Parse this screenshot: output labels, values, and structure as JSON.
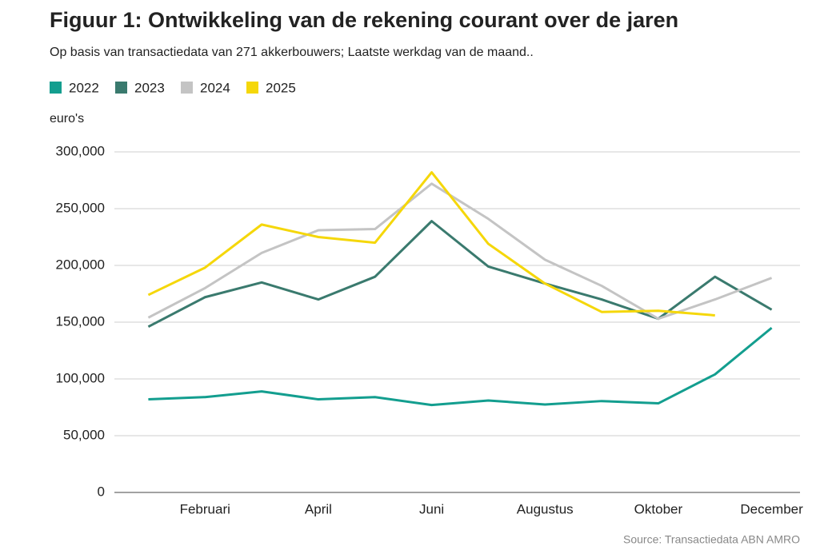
{
  "chart_data": {
    "type": "line",
    "title": "Figuur 1: Ontwikkeling van de rekening courant over de jaren",
    "subtitle": "Op basis van transactiedata van 271 akkerbouwers; Laatste werkdag van de maand..",
    "y_label": "euro's",
    "source": "Source:  Transactiedata ABN AMRO",
    "categories": [
      null,
      "Februari",
      null,
      "April",
      null,
      "Juni",
      null,
      "Augustus",
      null,
      "Oktober",
      null,
      "December"
    ],
    "series": [
      {
        "name": "2022",
        "color": "#139e8f",
        "values": [
          82000,
          84000,
          89000,
          82000,
          84000,
          77000,
          81000,
          77500,
          80500,
          78500,
          104000,
          145000
        ]
      },
      {
        "name": "2023",
        "color": "#3a7a6e",
        "values": [
          146000,
          172000,
          185000,
          170000,
          190000,
          239000,
          199000,
          184000,
          170000,
          153000,
          190000,
          161000
        ]
      },
      {
        "name": "2024",
        "color": "#c4c4c4",
        "values": [
          154000,
          180000,
          211000,
          231000,
          232000,
          272000,
          241000,
          205000,
          182000,
          153000,
          170000,
          189000
        ]
      },
      {
        "name": "2025",
        "color": "#f5d70a",
        "values": [
          174000,
          198000,
          236000,
          225000,
          220000,
          282000,
          219000,
          184000,
          159000,
          160000,
          156000,
          null
        ]
      }
    ],
    "ylim": [
      0,
      300000
    ],
    "yticks": [
      0,
      {
        "value": 50000,
        "label": "50,000"
      },
      {
        "value": 100000,
        "label": "100,000"
      },
      {
        "value": 150000,
        "label": "150,000"
      },
      {
        "value": 200000,
        "label": "200,000"
      },
      {
        "value": 250000,
        "label": "250,000"
      },
      {
        "value": 300000,
        "label": "300,000"
      }
    ],
    "grid": true
  }
}
